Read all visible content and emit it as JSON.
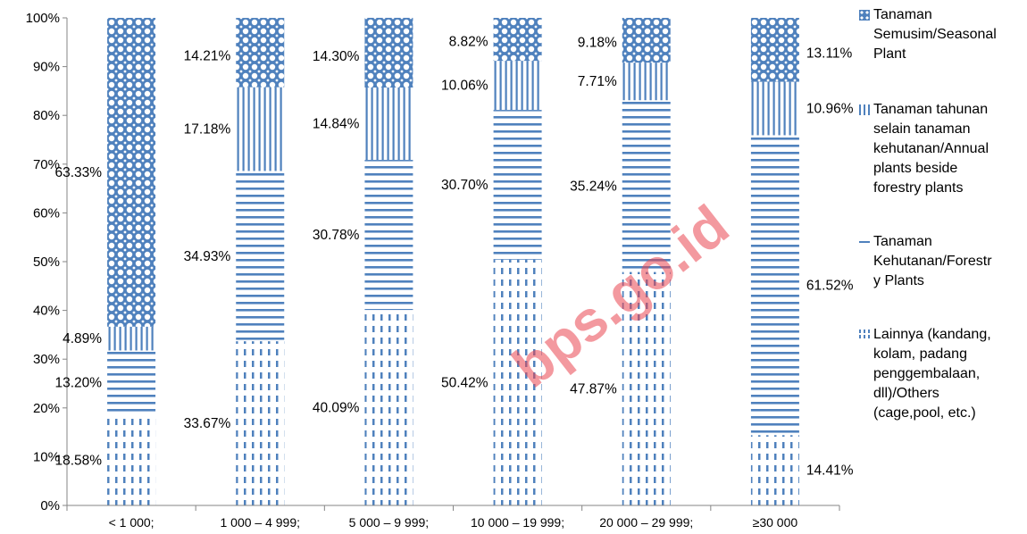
{
  "chart_data": {
    "type": "bar",
    "stacked": true,
    "categories": [
      "< 1 000;",
      "1 000 – 4 999;",
      "5 000 – 9 999;",
      "10 000 – 19 999;",
      "20 000 – 29 999;",
      "≥30 000"
    ],
    "series": [
      {
        "name": "Lainnya (kandang, kolam, padang penggembalaan, dll)/Others (cage,pool, etc.)",
        "values": [
          18.58,
          33.67,
          40.09,
          50.42,
          47.87,
          14.41
        ],
        "labels": [
          "18.58%",
          "33.67%",
          "40.09%",
          "50.42%",
          "47.87%",
          "14.41%"
        ]
      },
      {
        "name": "Tanaman Kehutanan/Forestry Plants",
        "values": [
          13.2,
          34.93,
          30.78,
          30.7,
          35.24,
          61.52
        ],
        "labels": [
          "13.20%",
          "34.93%",
          "30.78%",
          "30.70%",
          "35.24%",
          "61.52%"
        ]
      },
      {
        "name": "Tanaman tahunan selain tanaman kehutanan/Annual plants beside forestry plants",
        "values": [
          4.89,
          17.18,
          14.84,
          10.06,
          7.71,
          10.96
        ],
        "labels": [
          "4.89%",
          "17.18%",
          "14.84%",
          "10.06%",
          "7.71%",
          "10.96%"
        ]
      },
      {
        "name": "Tanaman Semusim/Seasonal Plant",
        "values": [
          63.33,
          14.21,
          14.3,
          8.82,
          9.18,
          13.11
        ],
        "labels": [
          "63.33%",
          "14.21%",
          "14.30%",
          "8.82%",
          "9.18%",
          "13.11%"
        ]
      }
    ],
    "ylim": [
      0,
      100
    ],
    "yticks": [
      "0%",
      "10%",
      "20%",
      "30%",
      "40%",
      "50%",
      "60%",
      "70%",
      "80%",
      "90%",
      "100%"
    ],
    "legend_position": "right",
    "colors": {
      "bar": "#4f81bd",
      "axis": "#868686",
      "text": "#000000"
    }
  },
  "legend": [
    {
      "lines": [
        "Tanaman",
        "Semusim/Seasonal",
        "Plant"
      ],
      "pattern": "seasonal"
    },
    {
      "lines": [
        "Tanaman tahunan",
        "selain tanaman",
        "kehutanan/Annual",
        "plants beside",
        "forestry plants"
      ],
      "pattern": "annual"
    },
    {
      "lines": [
        "Tanaman",
        "Kehutanan/Forestr",
        "y Plants"
      ],
      "pattern": "forestry"
    },
    {
      "lines": [
        "Lainnya (kandang,",
        "kolam, padang",
        "penggembalaan,",
        "dll)/Others",
        "(cage,pool, etc.)"
      ],
      "pattern": "others"
    }
  ],
  "watermark": "bps.go.id"
}
